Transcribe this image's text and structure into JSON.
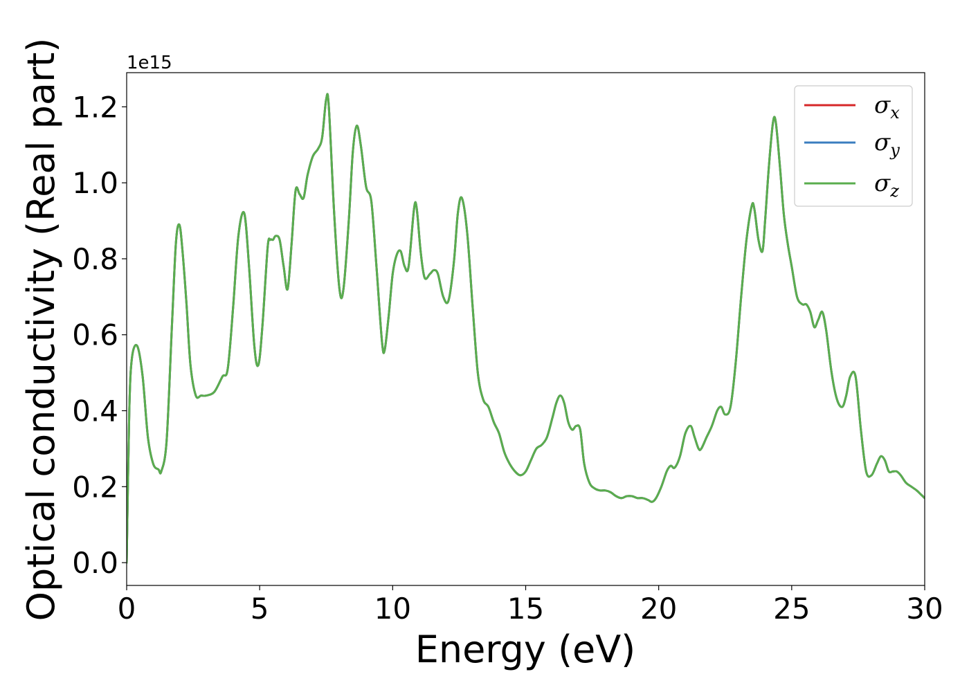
{
  "chart_data": {
    "type": "line",
    "title": "",
    "xlabel": "Energy (eV)",
    "ylabel": "Optical conductivity (Real part)",
    "y_offset_text": "1e15",
    "y_scale": 1000000000000000.0,
    "xlim": [
      0,
      30
    ],
    "ylim": [
      -0.06,
      1.29
    ],
    "x_ticks": [
      0,
      5,
      10,
      15,
      20,
      25,
      30
    ],
    "x_tick_labels": [
      "0",
      "5",
      "10",
      "15",
      "20",
      "25",
      "30"
    ],
    "y_ticks": [
      0.0,
      0.2,
      0.4,
      0.6,
      0.8,
      1.0,
      1.2
    ],
    "y_tick_labels": [
      "0.0",
      "0.2",
      "0.4",
      "0.6",
      "0.8",
      "1.0",
      "1.2"
    ],
    "grid": false,
    "legend_position": "top-right",
    "series": [
      {
        "name": "σx",
        "symbol": "σ",
        "subscript": "x",
        "color": "#d62728",
        "key": "curve"
      },
      {
        "name": "σy",
        "symbol": "σ",
        "subscript": "y",
        "color": "#3a7dbf",
        "key": "curve"
      },
      {
        "name": "σz",
        "symbol": "σ",
        "subscript": "z",
        "color": "#5aad4e",
        "key": "curve"
      }
    ],
    "curve": {
      "x": [
        0,
        0.1,
        0.2,
        0.4,
        0.6,
        0.8,
        1.0,
        1.2,
        1.3,
        1.5,
        1.7,
        1.85,
        1.98,
        2.1,
        2.25,
        2.4,
        2.6,
        2.8,
        3.0,
        3.3,
        3.6,
        3.8,
        4.0,
        4.2,
        4.42,
        4.6,
        4.8,
        4.95,
        5.1,
        5.3,
        5.4,
        5.5,
        5.6,
        5.75,
        5.9,
        6.05,
        6.2,
        6.35,
        6.5,
        6.65,
        6.8,
        7.0,
        7.2,
        7.35,
        7.5,
        7.6,
        7.8,
        8.0,
        8.15,
        8.35,
        8.5,
        8.65,
        8.8,
        9.0,
        9.2,
        9.4,
        9.6,
        9.7,
        9.85,
        10.0,
        10.15,
        10.3,
        10.45,
        10.6,
        10.8,
        10.9,
        11.05,
        11.2,
        11.4,
        11.55,
        11.7,
        11.9,
        12.1,
        12.3,
        12.45,
        12.6,
        12.8,
        13.0,
        13.2,
        13.4,
        13.6,
        13.8,
        14.0,
        14.2,
        14.4,
        14.6,
        14.8,
        15.0,
        15.2,
        15.4,
        15.6,
        15.8,
        16.0,
        16.15,
        16.3,
        16.45,
        16.6,
        16.75,
        16.9,
        17.05,
        17.2,
        17.4,
        17.6,
        17.8,
        18.0,
        18.2,
        18.4,
        18.6,
        18.8,
        19.0,
        19.2,
        19.4,
        19.6,
        19.75,
        19.9,
        20.1,
        20.3,
        20.45,
        20.6,
        20.8,
        21.0,
        21.2,
        21.35,
        21.5,
        21.6,
        21.8,
        22.0,
        22.2,
        22.35,
        22.5,
        22.7,
        22.9,
        23.1,
        23.3,
        23.5,
        23.6,
        23.75,
        23.9,
        24.0,
        24.15,
        24.3,
        24.4,
        24.55,
        24.7,
        24.85,
        25.0,
        25.2,
        25.4,
        25.55,
        25.7,
        25.85,
        26.0,
        26.15,
        26.3,
        26.5,
        26.7,
        26.9,
        27.05,
        27.2,
        27.4,
        27.6,
        27.8,
        28.0,
        28.2,
        28.35,
        28.5,
        28.65,
        28.8,
        28.95,
        29.1,
        29.3,
        29.5,
        29.7,
        29.85,
        30.0
      ],
      "y": [
        0.0,
        0.4,
        0.54,
        0.57,
        0.49,
        0.33,
        0.26,
        0.245,
        0.24,
        0.32,
        0.62,
        0.84,
        0.89,
        0.82,
        0.68,
        0.52,
        0.44,
        0.44,
        0.44,
        0.45,
        0.49,
        0.51,
        0.67,
        0.86,
        0.92,
        0.78,
        0.57,
        0.52,
        0.62,
        0.83,
        0.85,
        0.85,
        0.86,
        0.85,
        0.78,
        0.72,
        0.84,
        0.98,
        0.97,
        0.96,
        1.02,
        1.07,
        1.09,
        1.12,
        1.22,
        1.2,
        0.92,
        0.72,
        0.72,
        0.9,
        1.08,
        1.15,
        1.1,
        0.99,
        0.95,
        0.77,
        0.58,
        0.56,
        0.65,
        0.76,
        0.81,
        0.82,
        0.78,
        0.78,
        0.93,
        0.935,
        0.82,
        0.75,
        0.76,
        0.77,
        0.76,
        0.7,
        0.69,
        0.79,
        0.92,
        0.96,
        0.87,
        0.68,
        0.5,
        0.43,
        0.41,
        0.37,
        0.34,
        0.29,
        0.26,
        0.24,
        0.23,
        0.24,
        0.27,
        0.3,
        0.31,
        0.33,
        0.38,
        0.42,
        0.44,
        0.42,
        0.37,
        0.35,
        0.36,
        0.35,
        0.26,
        0.21,
        0.195,
        0.19,
        0.19,
        0.185,
        0.175,
        0.17,
        0.175,
        0.175,
        0.17,
        0.17,
        0.165,
        0.16,
        0.17,
        0.2,
        0.24,
        0.255,
        0.25,
        0.28,
        0.34,
        0.36,
        0.33,
        0.3,
        0.3,
        0.33,
        0.36,
        0.4,
        0.41,
        0.39,
        0.41,
        0.53,
        0.7,
        0.85,
        0.94,
        0.93,
        0.85,
        0.82,
        0.9,
        1.05,
        1.16,
        1.16,
        1.05,
        0.92,
        0.84,
        0.78,
        0.7,
        0.68,
        0.68,
        0.66,
        0.62,
        0.64,
        0.66,
        0.61,
        0.5,
        0.43,
        0.41,
        0.44,
        0.49,
        0.49,
        0.35,
        0.24,
        0.23,
        0.26,
        0.28,
        0.27,
        0.24,
        0.24,
        0.24,
        0.23,
        0.21,
        0.2,
        0.19,
        0.18,
        0.17
      ]
    }
  }
}
